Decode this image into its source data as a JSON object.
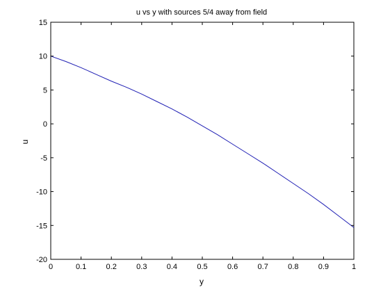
{
  "chart_data": {
    "type": "line",
    "title": "u vs y with sources 5/4 away from field",
    "xlabel": "y",
    "ylabel": "u",
    "xlim": [
      0,
      1
    ],
    "ylim": [
      -20,
      15
    ],
    "xticks": [
      0,
      0.1,
      0.2,
      0.3,
      0.4,
      0.5,
      0.6,
      0.7,
      0.8,
      0.9,
      1
    ],
    "xtick_labels": [
      "0",
      "0.1",
      "0.2",
      "0.3",
      "0.4",
      "0.5",
      "0.6",
      "0.7",
      "0.8",
      "0.9",
      "1"
    ],
    "yticks": [
      -20,
      -15,
      -10,
      -5,
      0,
      5,
      10,
      15
    ],
    "ytick_labels": [
      "-20",
      "-15",
      "-10",
      "-5",
      "0",
      "5",
      "10",
      "15"
    ],
    "grid": false,
    "line_color": "#1f1fb4",
    "series": [
      {
        "x": [
          0,
          0.05,
          0.1,
          0.15,
          0.2,
          0.25,
          0.3,
          0.35,
          0.4,
          0.45,
          0.5,
          0.55,
          0.6,
          0.65,
          0.7,
          0.75,
          0.8,
          0.85,
          0.9,
          0.95,
          1
        ],
        "values": [
          10.0,
          9.2,
          8.3,
          7.3,
          6.3,
          5.4,
          4.4,
          3.3,
          2.2,
          1.0,
          -0.3,
          -1.6,
          -3.0,
          -4.4,
          -5.8,
          -7.3,
          -8.8,
          -10.3,
          -11.9,
          -13.6,
          -15.3
        ]
      }
    ]
  }
}
